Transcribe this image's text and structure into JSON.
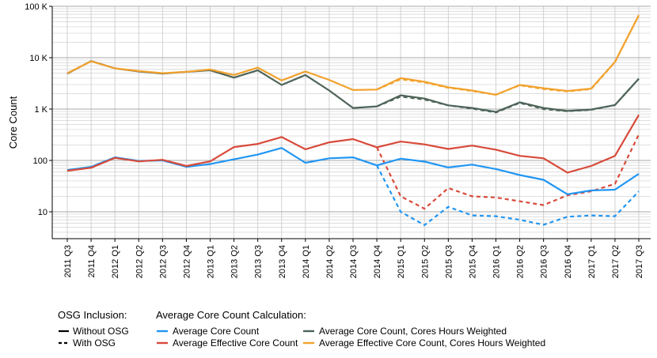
{
  "chart_data": {
    "type": "line",
    "title": "",
    "xlabel": "",
    "ylabel": "Core Count",
    "y_scale": "log10",
    "ylim": [
      3,
      100000
    ],
    "y_ticks": [
      {
        "value": 10,
        "label": "10"
      },
      {
        "value": 100,
        "label": "100"
      },
      {
        "value": 1000,
        "label": "1 K"
      },
      {
        "value": 10000,
        "label": "10 K"
      },
      {
        "value": 100000,
        "label": "100 K"
      }
    ],
    "grid": true,
    "categories": [
      "2011 Q3",
      "2011 Q4",
      "2012 Q1",
      "2012 Q2",
      "2012 Q3",
      "2012 Q4",
      "2013 Q1",
      "2013 Q2",
      "2013 Q3",
      "2013 Q4",
      "2014 Q1",
      "2014 Q2",
      "2014 Q3",
      "2014 Q4",
      "2015 Q1",
      "2015 Q2",
      "2015 Q3",
      "2015 Q4",
      "2016 Q1",
      "2016 Q2",
      "2016 Q3",
      "2016 Q4",
      "2017 Q1",
      "2017 Q2",
      "2017 Q3"
    ],
    "series": [
      {
        "name": "Average Core Count",
        "osg": "Without OSG",
        "color": "#2196f3",
        "dash": false,
        "values": [
          65,
          75,
          115,
          98,
          100,
          75,
          85,
          105,
          130,
          175,
          90,
          110,
          115,
          80,
          108,
          95,
          73,
          83,
          68,
          52,
          42,
          22,
          26,
          27,
          55
        ]
      },
      {
        "name": "Average Core Count",
        "osg": "With OSG",
        "color": "#2196f3",
        "dash": true,
        "values": [
          null,
          null,
          null,
          null,
          null,
          null,
          null,
          null,
          null,
          null,
          null,
          null,
          null,
          80,
          10,
          5.5,
          12.5,
          8.5,
          8.2,
          7,
          5.6,
          8,
          8.5,
          8.2,
          25
        ]
      },
      {
        "name": "Average Effective Core Count",
        "osg": "Without OSG",
        "color": "#d84a3a",
        "dash": false,
        "values": [
          63,
          72,
          112,
          96,
          103,
          78,
          96,
          182,
          210,
          285,
          165,
          225,
          260,
          180,
          233,
          205,
          167,
          195,
          162,
          123,
          110,
          58,
          78,
          123,
          770
        ]
      },
      {
        "name": "Average Effective Core Count",
        "osg": "With OSG",
        "color": "#d84a3a",
        "dash": true,
        "values": [
          null,
          null,
          null,
          null,
          null,
          null,
          null,
          null,
          null,
          null,
          null,
          null,
          null,
          180,
          20,
          11.5,
          29,
          20,
          19,
          16,
          13.5,
          21,
          25,
          35,
          320
        ]
      },
      {
        "name": "Average Core Count, Cores Hours Weighted",
        "osg": "Without OSG",
        "color": "#4e6459",
        "dash": false,
        "values": [
          4900,
          8600,
          6200,
          5400,
          4900,
          5300,
          5700,
          4100,
          5700,
          2950,
          4600,
          2300,
          1050,
          1130,
          1850,
          1600,
          1180,
          1050,
          880,
          1350,
          1050,
          920,
          980,
          1200,
          3900
        ]
      },
      {
        "name": "Average Core Count, Cores Hours Weighted",
        "osg": "With OSG",
        "color": "#4e6459",
        "dash": true,
        "values": [
          null,
          null,
          null,
          null,
          null,
          null,
          null,
          null,
          null,
          null,
          null,
          null,
          null,
          1130,
          1750,
          1530,
          1180,
          1020,
          860,
          1320,
          1000,
          910,
          970,
          1200,
          3900
        ]
      },
      {
        "name": "Average Effective Core Count, Cores Hours Weighted",
        "osg": "Without OSG",
        "color": "#f2a22d",
        "dash": false,
        "values": [
          5000,
          8500,
          6200,
          5500,
          5000,
          5300,
          5900,
          4600,
          6400,
          3600,
          5400,
          3700,
          2350,
          2400,
          4000,
          3400,
          2650,
          2300,
          1900,
          2950,
          2550,
          2250,
          2500,
          8300,
          67000
        ]
      },
      {
        "name": "Average Effective Core Count, Cores Hours Weighted",
        "osg": "With OSG",
        "color": "#f2a22d",
        "dash": true,
        "values": [
          null,
          null,
          null,
          null,
          null,
          null,
          null,
          null,
          null,
          null,
          null,
          null,
          null,
          2400,
          3800,
          3300,
          2600,
          2250,
          1900,
          2900,
          2450,
          2200,
          2450,
          8200,
          67000
        ]
      }
    ],
    "legend": {
      "placement": "bottom",
      "osg_title": "OSG Inclusion:",
      "osg_items": [
        {
          "label": "Without OSG",
          "dash": false
        },
        {
          "label": "With OSG",
          "dash": true
        }
      ],
      "calc_title": "Average Core Count Calculation:",
      "calc_items": [
        {
          "label": "Average Core Count",
          "color": "#2196f3"
        },
        {
          "label": "Average Effective Core Count",
          "color": "#d84a3a"
        },
        {
          "label": "Average Core Count, Cores Hours Weighted",
          "color": "#4e6459"
        },
        {
          "label": "Average Effective Core Count, Cores Hours Weighted",
          "color": "#f2a22d"
        }
      ]
    }
  }
}
